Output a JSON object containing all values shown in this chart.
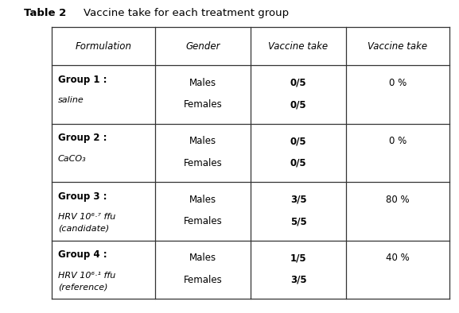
{
  "title_label": "Table 2",
  "title_desc": "Vaccine take for each treatment group",
  "headers": [
    "Formulation",
    "Gender",
    "Vaccine take",
    "Vaccine take"
  ],
  "rows": [
    {
      "group_bold": "Group 1 :",
      "group_italic": "saline",
      "group_italic2": "",
      "genders": [
        "Males",
        "Females"
      ],
      "vaccine_take": [
        "0/5",
        "0/5"
      ],
      "vaccine_take_pct": "0 %"
    },
    {
      "group_bold": "Group 2 :",
      "group_italic": "CaCO₃",
      "group_italic2": "",
      "genders": [
        "Males",
        "Females"
      ],
      "vaccine_take": [
        "0/5",
        "0/5"
      ],
      "vaccine_take_pct": "0 %"
    },
    {
      "group_bold": "Group 3 :",
      "group_italic": "HRV 10⁶·⁷ ffu",
      "group_italic2": "(candidate)",
      "genders": [
        "Males",
        "Females"
      ],
      "vaccine_take": [
        "3/5",
        "5/5"
      ],
      "vaccine_take_pct": "80 %"
    },
    {
      "group_bold": "Group 4 :",
      "group_italic": "HRV 10⁶·¹ ffu",
      "group_italic2": "(reference)",
      "genders": [
        "Males",
        "Females"
      ],
      "vaccine_take": [
        "1/5",
        "3/5"
      ],
      "vaccine_take_pct": "40 %"
    }
  ],
  "bg_color": "#ffffff",
  "border_color": "#333333",
  "text_color": "#000000",
  "header_fontsize": 8.5,
  "body_fontsize": 8.5,
  "title_fontsize": 9.5
}
